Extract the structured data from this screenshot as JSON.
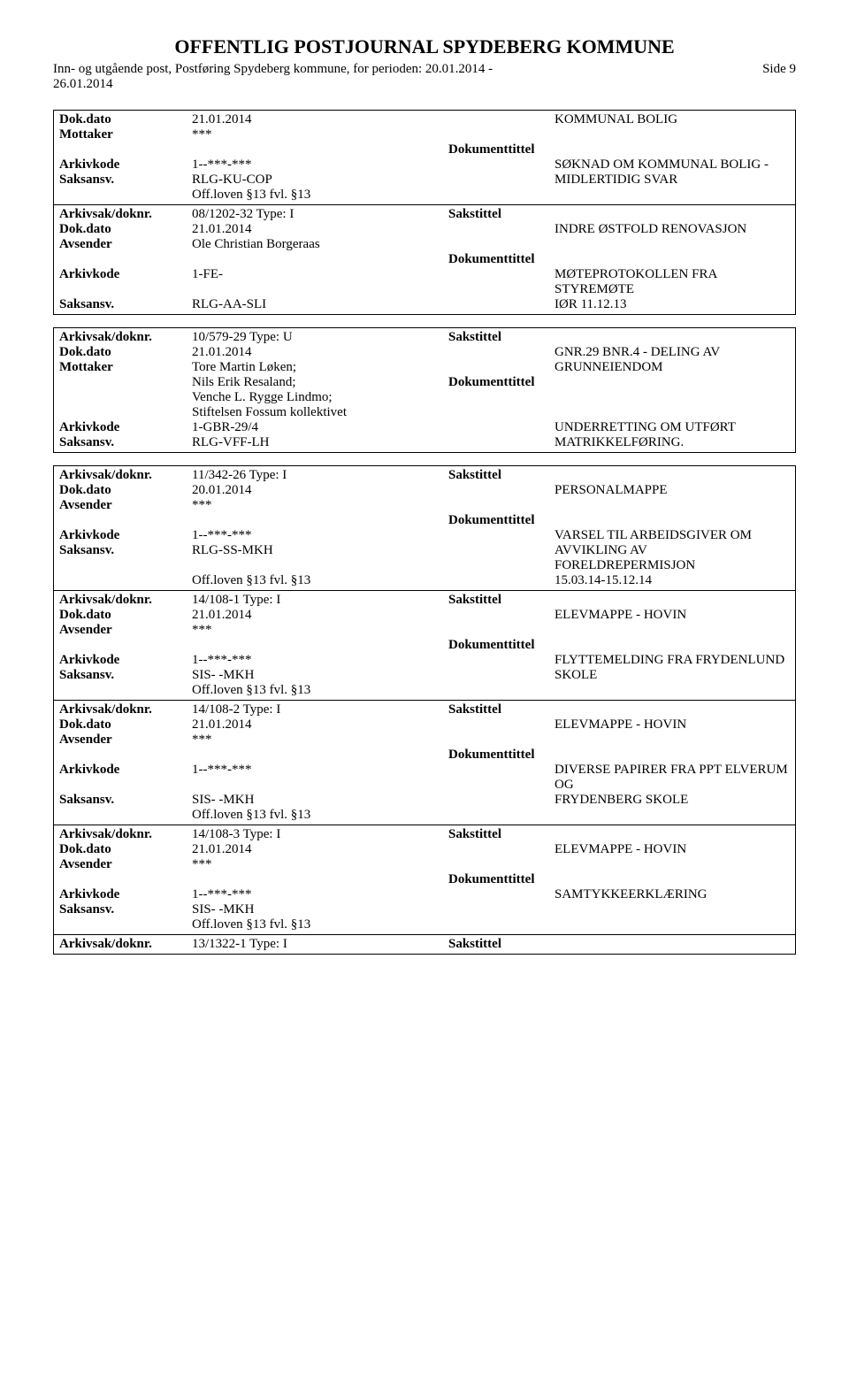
{
  "header": {
    "title": "OFFENTLIG POSTJOURNAL SPYDEBERG KOMMUNE",
    "subtitle_line1": "Inn- og utgående post, Postføring Spydeberg kommune, for perioden: 20.01.2014 -",
    "subtitle_line2": "26.01.2014",
    "page": "Side 9"
  },
  "blocks": [
    {
      "entries": [
        {
          "rows": [
            {
              "l1": "Dok.dato",
              "v1": "21.01.2014",
              "l2": "",
              "v2": "KOMMUNAL BOLIG"
            },
            {
              "l1": "Mottaker",
              "v1": "***",
              "l2": "",
              "v2": ""
            },
            {
              "l1": "",
              "v1": "",
              "l2": "Dokumenttittel",
              "v2": ""
            },
            {
              "l1": "Arkivkode",
              "v1": "1--***-***",
              "l2": "",
              "v2": "SØKNAD OM KOMMUNAL BOLIG -"
            },
            {
              "l1": "Saksansv.",
              "v1": "RLG-KU-COP",
              "l2": "",
              "v2": "MIDLERTIDIG SVAR"
            },
            {
              "l1": "",
              "v1": "Off.loven §13  fvl. §13",
              "l2": "",
              "v2": ""
            }
          ]
        },
        {
          "rows": [
            {
              "l1": "Arkivsak/doknr.",
              "v1": "08/1202-32       Type:     I",
              "l2": "Sakstittel",
              "v2": ""
            },
            {
              "l1": "Dok.dato",
              "v1": "21.01.2014",
              "l2": "",
              "v2": "INDRE ØSTFOLD RENOVASJON"
            },
            {
              "l1": "Avsender",
              "v1": "Ole Christian Borgeraas",
              "l2": "",
              "v2": ""
            },
            {
              "l1": "",
              "v1": "",
              "l2": "Dokumenttittel",
              "v2": ""
            },
            {
              "l1": "Arkivkode",
              "v1": "1-FE-",
              "l2": "",
              "v2": "MØTEPROTOKOLLEN FRA STYREMØTE"
            },
            {
              "l1": "Saksansv.",
              "v1": "RLG-AA-SLI",
              "l2": "",
              "v2": "IØR 11.12.13"
            }
          ]
        }
      ]
    },
    {
      "entries": [
        {
          "rows": [
            {
              "l1": "Arkivsak/doknr.",
              "v1": "10/579-29       Type:     U",
              "l2": "Sakstittel",
              "v2": ""
            },
            {
              "l1": "Dok.dato",
              "v1": "21.01.2014",
              "l2": "",
              "v2": "GNR.29 BNR.4  -  DELING AV"
            },
            {
              "l1": "Mottaker",
              "v1": "Tore Martin Løken;",
              "l2": "",
              "v2": "GRUNNEIENDOM"
            },
            {
              "l1": "",
              "v1": "Nils Erik Resaland;",
              "l2": "Dokumenttittel",
              "v2": ""
            },
            {
              "l1": "",
              "v1": "Venche L. Rygge Lindmo;",
              "l2": "",
              "v2": ""
            },
            {
              "l1": "",
              "v1": "Stiftelsen Fossum kollektivet",
              "l2": "",
              "v2": ""
            },
            {
              "l1": "Arkivkode",
              "v1": "1-GBR-29/4",
              "l2": "",
              "v2": "UNDERRETTING OM UTFØRT"
            },
            {
              "l1": "Saksansv.",
              "v1": "RLG-VFF-LH",
              "l2": "",
              "v2": "MATRIKKELFØRING."
            }
          ]
        }
      ]
    },
    {
      "entries": [
        {
          "rows": [
            {
              "l1": "Arkivsak/doknr.",
              "v1": "11/342-26       Type:     I",
              "l2": "Sakstittel",
              "v2": ""
            },
            {
              "l1": "Dok.dato",
              "v1": "20.01.2014",
              "l2": "",
              "v2": "PERSONALMAPPE"
            },
            {
              "l1": "Avsender",
              "v1": "***",
              "l2": "",
              "v2": ""
            },
            {
              "l1": "",
              "v1": "",
              "l2": "Dokumenttittel",
              "v2": ""
            },
            {
              "l1": "Arkivkode",
              "v1": "1--***-***",
              "l2": "",
              "v2": "VARSEL TIL ARBEIDSGIVER OM"
            },
            {
              "l1": "Saksansv.",
              "v1": "RLG-SS-MKH",
              "l2": "",
              "v2": "AVVIKLING AV FORELDREPERMISJON"
            },
            {
              "l1": "",
              "v1": "Off.loven §13  fvl. §13",
              "l2": "",
              "v2": "15.03.14-15.12.14"
            }
          ]
        },
        {
          "rows": [
            {
              "l1": "Arkivsak/doknr.",
              "v1": "14/108-1       Type:     I",
              "l2": "Sakstittel",
              "v2": ""
            },
            {
              "l1": "Dok.dato",
              "v1": "21.01.2014",
              "l2": "",
              "v2": "ELEVMAPPE - HOVIN"
            },
            {
              "l1": "Avsender",
              "v1": "***",
              "l2": "",
              "v2": ""
            },
            {
              "l1": "",
              "v1": "",
              "l2": "Dokumenttittel",
              "v2": ""
            },
            {
              "l1": "Arkivkode",
              "v1": "1--***-***",
              "l2": "",
              "v2": "FLYTTEMELDING FRA FRYDENLUND"
            },
            {
              "l1": "Saksansv.",
              "v1": "SIS- -MKH",
              "l2": "",
              "v2": "SKOLE"
            },
            {
              "l1": "",
              "v1": "Off.loven §13  fvl. §13",
              "l2": "",
              "v2": ""
            }
          ]
        },
        {
          "rows": [
            {
              "l1": "Arkivsak/doknr.",
              "v1": "14/108-2       Type:     I",
              "l2": "Sakstittel",
              "v2": ""
            },
            {
              "l1": "Dok.dato",
              "v1": "21.01.2014",
              "l2": "",
              "v2": "ELEVMAPPE - HOVIN"
            },
            {
              "l1": "Avsender",
              "v1": "***",
              "l2": "",
              "v2": ""
            },
            {
              "l1": "",
              "v1": "",
              "l2": "Dokumenttittel",
              "v2": ""
            },
            {
              "l1": "Arkivkode",
              "v1": "1--***-***",
              "l2": "",
              "v2": "DIVERSE PAPIRER FRA PPT ELVERUM OG"
            },
            {
              "l1": "Saksansv.",
              "v1": "SIS- -MKH",
              "l2": "",
              "v2": "FRYDENBERG SKOLE"
            },
            {
              "l1": "",
              "v1": "Off.loven §13  fvl. §13",
              "l2": "",
              "v2": ""
            }
          ]
        },
        {
          "rows": [
            {
              "l1": "Arkivsak/doknr.",
              "v1": "14/108-3       Type:     I",
              "l2": "Sakstittel",
              "v2": ""
            },
            {
              "l1": "Dok.dato",
              "v1": "21.01.2014",
              "l2": "",
              "v2": "ELEVMAPPE - HOVIN"
            },
            {
              "l1": "Avsender",
              "v1": "***",
              "l2": "",
              "v2": ""
            },
            {
              "l1": "",
              "v1": "",
              "l2": "Dokumenttittel",
              "v2": ""
            },
            {
              "l1": "Arkivkode",
              "v1": "1--***-***",
              "l2": "",
              "v2": "SAMTYKKEERKLÆRING"
            },
            {
              "l1": "Saksansv.",
              "v1": "SIS- -MKH",
              "l2": "",
              "v2": ""
            },
            {
              "l1": "",
              "v1": "Off.loven §13  fvl. §13",
              "l2": "",
              "v2": ""
            }
          ]
        },
        {
          "rows": [
            {
              "l1": "Arkivsak/doknr.",
              "v1": "13/1322-1       Type:     I",
              "l2": "Sakstittel",
              "v2": ""
            }
          ]
        }
      ]
    }
  ],
  "bold_labels": [
    "Arkivsak/doknr.",
    "Dok.dato",
    "Mottaker",
    "Avsender",
    "Arkivkode",
    "Saksansv."
  ],
  "bold_right_labels": [
    "Sakstittel",
    "Dokumenttittel"
  ]
}
